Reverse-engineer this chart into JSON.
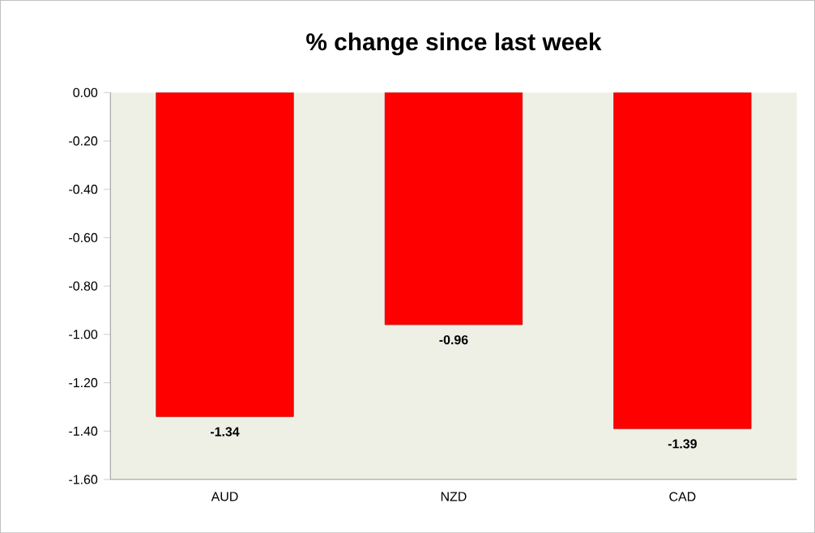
{
  "chart_data": {
    "type": "bar",
    "title": "% change since last week",
    "categories": [
      "AUD",
      "NZD",
      "CAD"
    ],
    "values": [
      -1.34,
      -0.96,
      -1.39
    ],
    "color": "#ff0000",
    "ylim": [
      -1.6,
      0
    ],
    "yticks": [
      {
        "value": 0,
        "label": "0.00"
      },
      {
        "value": -0.2,
        "label": "-0.20"
      },
      {
        "value": -0.4,
        "label": "-0.40"
      },
      {
        "value": -0.6,
        "label": "-0.60"
      },
      {
        "value": -0.8,
        "label": "-0.80"
      },
      {
        "value": -1.0,
        "label": "-1.00"
      },
      {
        "value": -1.2,
        "label": "-1.20"
      },
      {
        "value": -1.4,
        "label": "-1.40"
      },
      {
        "value": -1.6,
        "label": "-1.60"
      }
    ],
    "data_labels": true,
    "grid": false
  }
}
